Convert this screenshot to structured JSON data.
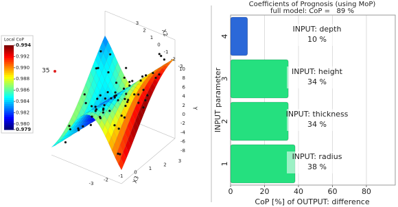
{
  "chart_data": [
    {
      "type": "surface",
      "colorbar_title": "Local CoP",
      "clim": [
        0.979,
        0.994
      ],
      "cticks": [
        0.994,
        0.992,
        {
          "value": 0.99,
          "label": "0.990"
        },
        0.988,
        0.986,
        0.984,
        0.982,
        {
          "value": 0.98,
          "label": "0.980"
        },
        0.979
      ],
      "xlabel": "X3",
      "xticks": [
        -3,
        -2,
        -1,
        0,
        1,
        2,
        3
      ],
      "ylabel": "X2",
      "yticks": [
        3,
        2,
        1,
        0,
        -1,
        -2,
        -3
      ],
      "zlabel": "Y",
      "zticks": [
        10,
        8,
        6,
        4,
        2,
        0,
        -2,
        -4,
        -6,
        -8
      ],
      "annotation": "35"
    },
    {
      "type": "bar",
      "title": "Coefficients of Prognosis (using MoP)",
      "subtitle": "full model: CoP =   89 %",
      "categories": [
        "1",
        "2",
        "3",
        "4"
      ],
      "bar_labels": [
        "INPUT: radius",
        "INPUT: thickness",
        "INPUT: height",
        "INPUT: depth"
      ],
      "values": [
        38,
        34,
        34,
        10
      ],
      "value_labels": [
        "38 %",
        "34 %",
        "34 %",
        "10 %"
      ],
      "colors": [
        "#25e07f",
        "#25e07f",
        "#25e07f",
        "#2b68d8"
      ],
      "xlim": [
        0,
        97
      ],
      "xticks": [
        0,
        20,
        40,
        60,
        80
      ],
      "xlabel": "CoP [%] of OUTPUT: difference",
      "ylabel": "INPUT parameter",
      "grid": true
    }
  ]
}
